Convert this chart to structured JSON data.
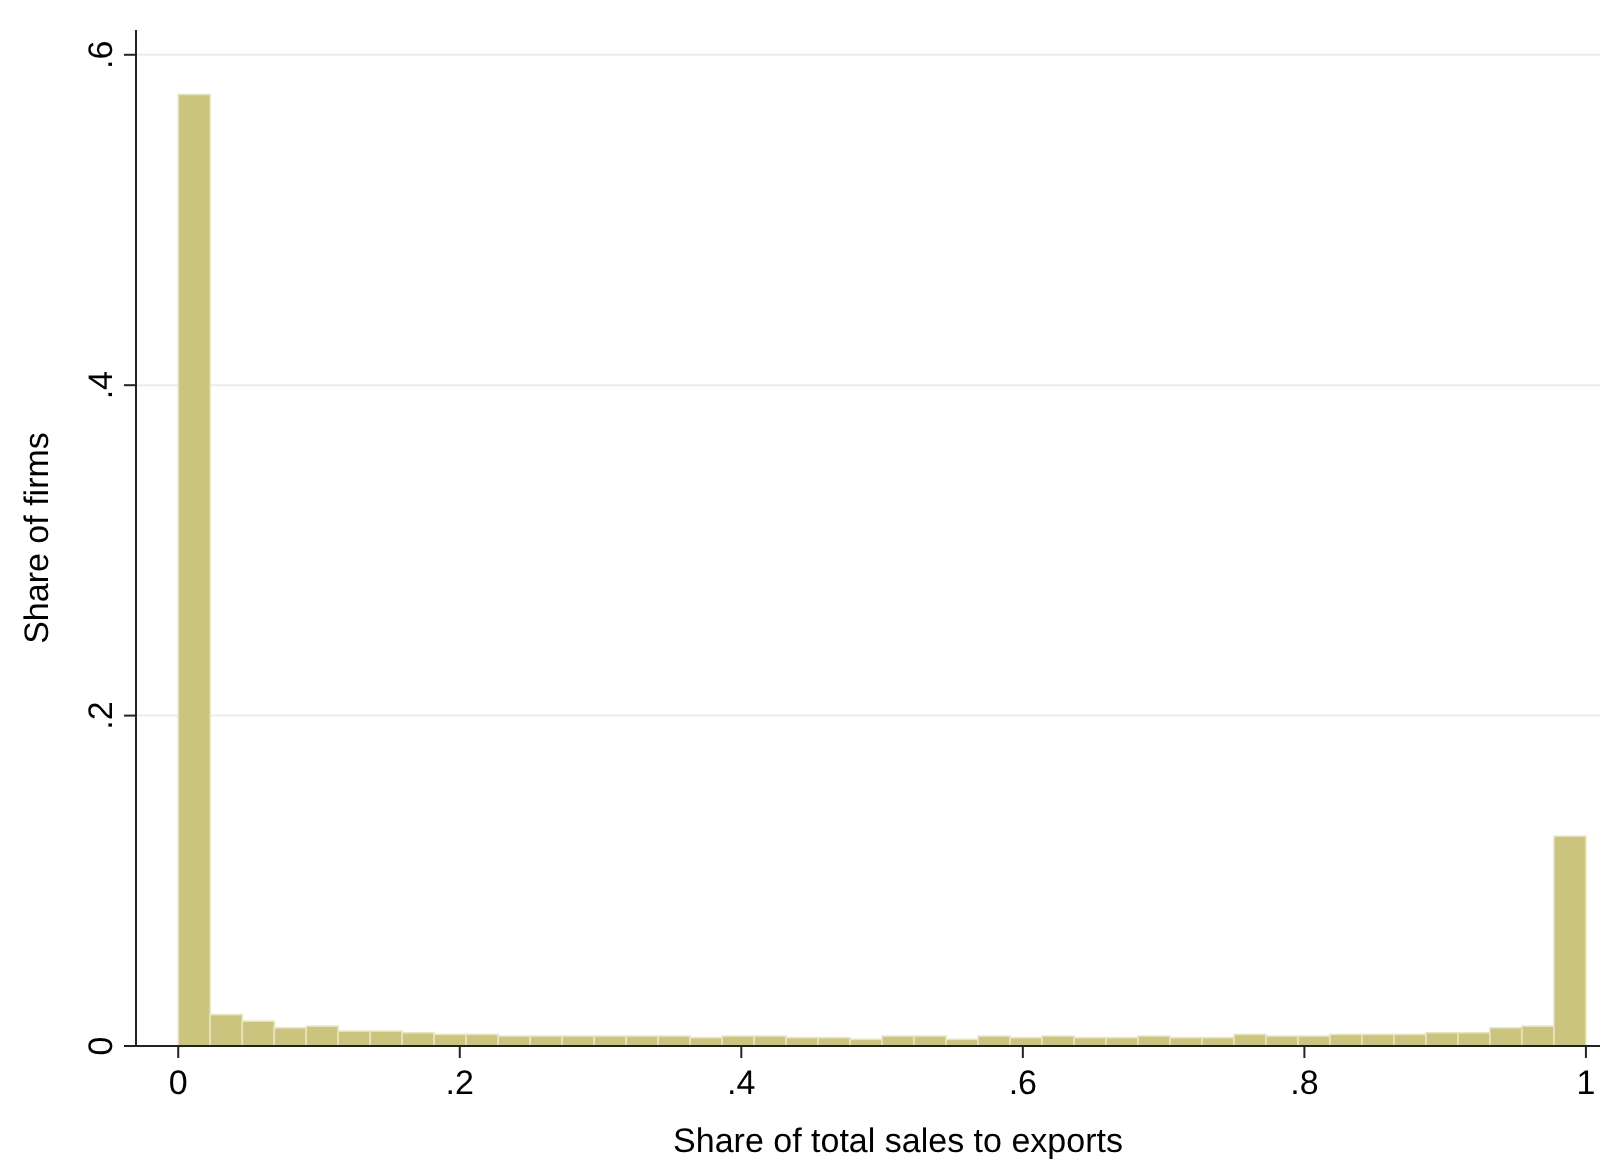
{
  "chart_data": {
    "type": "histogram",
    "xlabel": "Share of total sales to exports",
    "ylabel": "Share of firms",
    "color": "#cac47e",
    "bins": [
      0,
      0.0227,
      0.0455,
      0.0682,
      0.0909,
      0.1136,
      0.1364,
      0.1591,
      0.1818,
      0.2045,
      0.2273,
      0.25,
      0.2727,
      0.2955,
      0.3182,
      0.3409,
      0.3636,
      0.3864,
      0.4091,
      0.4318,
      0.4545,
      0.4773,
      0.5,
      0.5227,
      0.5455,
      0.5682,
      0.5909,
      0.6136,
      0.6364,
      0.6591,
      0.6818,
      0.7045,
      0.7273,
      0.75,
      0.7727,
      0.7955,
      0.8182,
      0.8409,
      0.8636,
      0.8864,
      0.9091,
      0.9318,
      0.9545,
      0.9773,
      1
    ],
    "values": [
      0.576,
      0.019,
      0.015,
      0.011,
      0.012,
      0.009,
      0.009,
      0.008,
      0.007,
      0.007,
      0.006,
      0.006,
      0.006,
      0.006,
      0.006,
      0.006,
      0.005,
      0.006,
      0.006,
      0.005,
      0.005,
      0.004,
      0.006,
      0.006,
      0.004,
      0.006,
      0.005,
      0.006,
      0.005,
      0.005,
      0.006,
      0.005,
      0.005,
      0.007,
      0.006,
      0.006,
      0.007,
      0.007,
      0.007,
      0.008,
      0.008,
      0.011,
      0.012,
      0.127
    ],
    "xlim": [
      -0.03,
      1.01
    ],
    "ylim": [
      0,
      0.615
    ],
    "xticks": [
      0,
      {
        "value": 0.2,
        "label": ".2"
      },
      {
        "value": 0.4,
        "label": ".4"
      },
      {
        "value": 0.6,
        "label": ".6"
      },
      {
        "value": 0.8,
        "label": ".8"
      },
      1
    ],
    "yticks": [
      0,
      {
        "value": 0.2,
        "label": ".2"
      },
      {
        "value": 0.4,
        "label": ".4"
      },
      {
        "value": 0.6,
        "label": ".6"
      }
    ],
    "grid": "y"
  }
}
